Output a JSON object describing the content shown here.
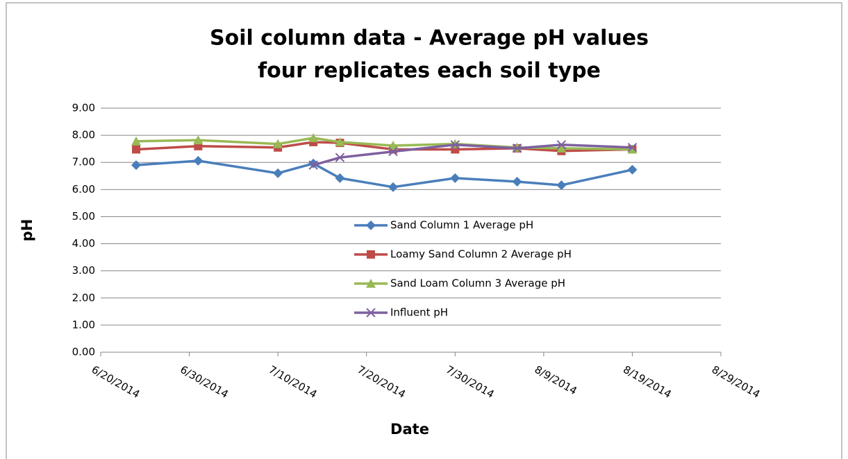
{
  "chart_data": {
    "type": "line",
    "title": [
      "Soil column data - Average pH values",
      "four replicates each soil type"
    ],
    "x_label": "Date",
    "y_label": "pH",
    "x": [
      "6/24/2014",
      "7/1/2014",
      "7/10/2014",
      "7/14/2014",
      "7/17/2014",
      "7/23/2014",
      "7/30/2014",
      "8/6/2014",
      "8/11/2014",
      "8/19/2014"
    ],
    "xlim": [
      "6/20/2014",
      "8/29/2014"
    ],
    "xticks": [
      "6/20/2014",
      "6/30/2014",
      "7/10/2014",
      "7/20/2014",
      "7/30/2014",
      "8/9/2014",
      "8/19/2014",
      "8/29/2014"
    ],
    "ylim": [
      0,
      9
    ],
    "yticks": [
      {
        "value": 0,
        "label": "0.00"
      },
      {
        "value": 1,
        "label": "1.00"
      },
      {
        "value": 2,
        "label": "2.00"
      },
      {
        "value": 3,
        "label": "3.00"
      },
      {
        "value": 4,
        "label": "4.00"
      },
      {
        "value": 5,
        "label": "5.00"
      },
      {
        "value": 6,
        "label": "6.00"
      },
      {
        "value": 7,
        "label": "7.00"
      },
      {
        "value": 8,
        "label": "8.00"
      },
      {
        "value": 9,
        "label": "9.00"
      }
    ],
    "grid": true,
    "legend": "center",
    "series": [
      {
        "name": "Sand Column 1 Average pH",
        "color": "#4a7ebb",
        "marker": "diamond",
        "values": [
          6.9,
          7.06,
          6.6,
          6.96,
          6.42,
          6.09,
          6.42,
          6.29,
          6.16,
          6.73
        ]
      },
      {
        "name": "Loamy Sand Column 2 Average pH",
        "color": "#be4b48",
        "marker": "square",
        "values": [
          7.48,
          7.6,
          7.55,
          7.75,
          7.72,
          7.48,
          7.48,
          7.52,
          7.42,
          7.48
        ]
      },
      {
        "name": "Sand Loam Column 3 Average pH",
        "color": "#98b954",
        "marker": "triangle",
        "values": [
          7.78,
          7.82,
          7.68,
          7.9,
          7.75,
          7.62,
          7.68,
          7.55,
          7.52,
          7.48
        ]
      },
      {
        "name": "Influent pH",
        "color": "#7d60a0",
        "marker": "x",
        "values": [
          null,
          null,
          null,
          6.9,
          7.18,
          7.4,
          7.65,
          7.52,
          7.65,
          7.55
        ]
      }
    ]
  }
}
